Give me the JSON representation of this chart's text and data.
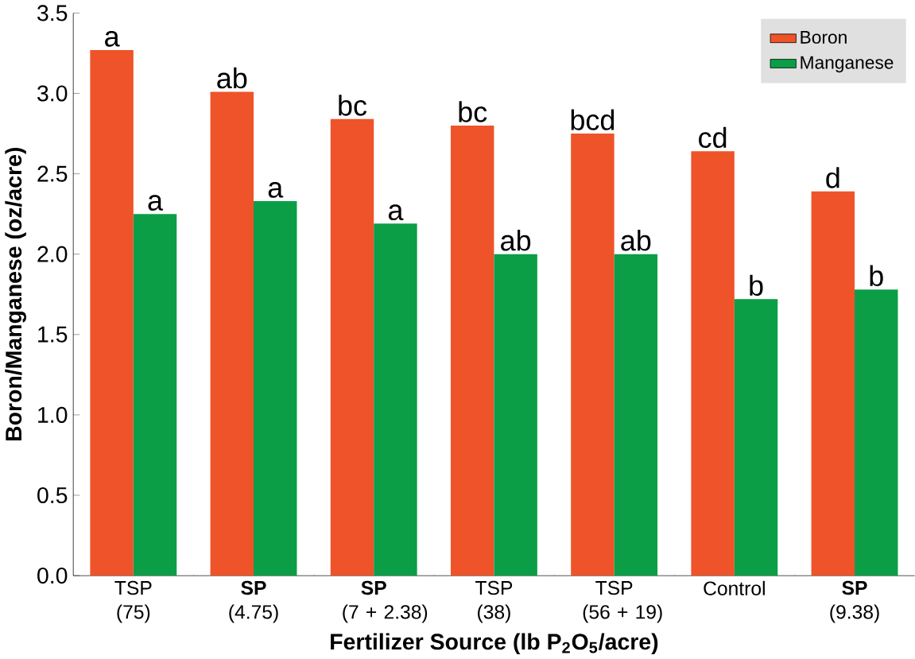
{
  "chart_data": {
    "type": "bar",
    "xlabel": "Fertilizer Source (lb P$_{2}$O$_{5}$/acre)",
    "ylabel": "Boron/Manganese (oz/acre)",
    "categories": [
      "TSP (75)",
      "**SP** (4.75)",
      "**SP** (7 + 2.38)",
      "TSP (38)",
      "TSP (56 + 19)",
      "Control",
      "**SP** (9.38)"
    ],
    "series": [
      {
        "name": "Boron",
        "color": "#ee5329",
        "values": [
          3.27,
          3.01,
          2.84,
          2.8,
          2.75,
          2.64,
          2.39
        ],
        "value_labels": [
          "a",
          "ab",
          "bc",
          "bc",
          "bcd",
          "cd",
          "d"
        ]
      },
      {
        "name": "Manganese",
        "color": "#0b9e47",
        "values": [
          2.25,
          2.33,
          2.19,
          2.0,
          2.0,
          1.72,
          1.78
        ],
        "value_labels": [
          "a",
          "a",
          "a",
          "ab",
          "ab",
          "b",
          "b"
        ]
      }
    ],
    "ylim": [
      0,
      3.5
    ],
    "yticks": [
      {
        "value": 0,
        "label": "0.0"
      },
      {
        "value": 0.5,
        "label": "0.5"
      },
      {
        "value": 1,
        "label": "1.0"
      },
      {
        "value": 1.5,
        "label": "1.5"
      },
      {
        "value": 2,
        "label": "2.0"
      },
      {
        "value": 2.5,
        "label": "2.5"
      },
      {
        "value": 3,
        "label": "3.0"
      },
      {
        "value": 3.5,
        "label": "3.5"
      }
    ],
    "legend": "top right",
    "grid": false
  }
}
